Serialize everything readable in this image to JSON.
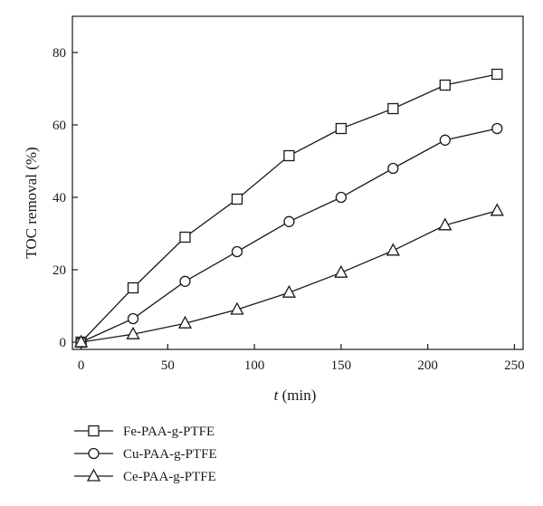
{
  "chart_data": {
    "type": "line",
    "title": "",
    "xlabel_var": "t",
    "xlabel_unit": " (min)",
    "ylabel": "TOC removal (%)",
    "xlim": [
      -5,
      255
    ],
    "ylim": [
      -2,
      90
    ],
    "xticks": [
      0,
      50,
      100,
      150,
      200,
      250
    ],
    "yticks": [
      0,
      20,
      40,
      60,
      80
    ],
    "grid": false,
    "legend_position": "bottom-left, below plot",
    "series": [
      {
        "name": "Fe-PAA-g-PTFE",
        "marker": "square",
        "x": [
          0,
          30,
          60,
          90,
          120,
          150,
          180,
          210,
          240
        ],
        "y": [
          0,
          15,
          29,
          39.5,
          51.5,
          59,
          64.5,
          71,
          74
        ]
      },
      {
        "name": "Cu-PAA-g-PTFE",
        "marker": "circle",
        "x": [
          0,
          30,
          60,
          90,
          120,
          150,
          180,
          210,
          240
        ],
        "y": [
          0,
          6.5,
          16.8,
          25,
          33.3,
          40,
          48,
          55.8,
          59
        ]
      },
      {
        "name": "Ce-PAA-g-PTFE",
        "marker": "triangle",
        "x": [
          0,
          30,
          60,
          90,
          120,
          150,
          180,
          210,
          240
        ],
        "y": [
          0,
          2.2,
          5.2,
          9,
          13.7,
          19.2,
          25.3,
          32.3,
          36.3
        ]
      }
    ]
  }
}
